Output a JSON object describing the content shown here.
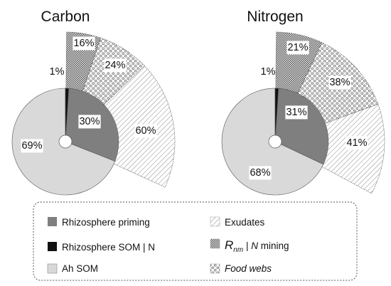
{
  "chart_data": [
    {
      "type": "pie",
      "title": "Carbon",
      "inner_pie": [
        {
          "label": "Ah SOM",
          "value": 69,
          "text": "69%"
        },
        {
          "label": "Rhizosphere priming",
          "value": 30,
          "text": "30%"
        },
        {
          "label": "Rhizosphere SOM | N",
          "value": 1,
          "text": "1%"
        }
      ],
      "exploded_fan": [
        {
          "label": "R_nm | N mining",
          "value": 16,
          "text": "16%"
        },
        {
          "label": "Food webs",
          "value": 24,
          "text": "24%"
        },
        {
          "label": "Exudates",
          "value": 60,
          "text": "60%"
        }
      ]
    },
    {
      "type": "pie",
      "title": "Nitrogen",
      "inner_pie": [
        {
          "label": "Ah SOM",
          "value": 68,
          "text": "68%"
        },
        {
          "label": "Rhizosphere priming",
          "value": 31,
          "text": "31%"
        },
        {
          "label": "Rhizosphere SOM | N",
          "value": 1,
          "text": "1%"
        }
      ],
      "exploded_fan": [
        {
          "label": "R_nm | N mining",
          "value": 21,
          "text": "21%"
        },
        {
          "label": "Food webs",
          "value": 38,
          "text": "38%"
        },
        {
          "label": "Exudates",
          "value": 41,
          "text": "41%"
        }
      ]
    }
  ],
  "legend": {
    "rhizosphere_priming": "Rhizosphere priming",
    "rhizosphere_som_n": "Rhizosphere SOM | N",
    "ah_som": "Ah SOM",
    "exudates": "Exudates",
    "rnm_r": "R",
    "rnm_sub": "nm",
    "rnm_rest": " | ",
    "rnm_n": "N",
    "rnm_mining": " mining",
    "food_webs": "Food webs"
  },
  "colors": {
    "ah_som": "#d9d9d9",
    "rhizosphere_priming": "#7f7f7f",
    "rhizosphere_som_n": "#111111",
    "fan_background": "#ffffff",
    "outline": "#555555"
  }
}
